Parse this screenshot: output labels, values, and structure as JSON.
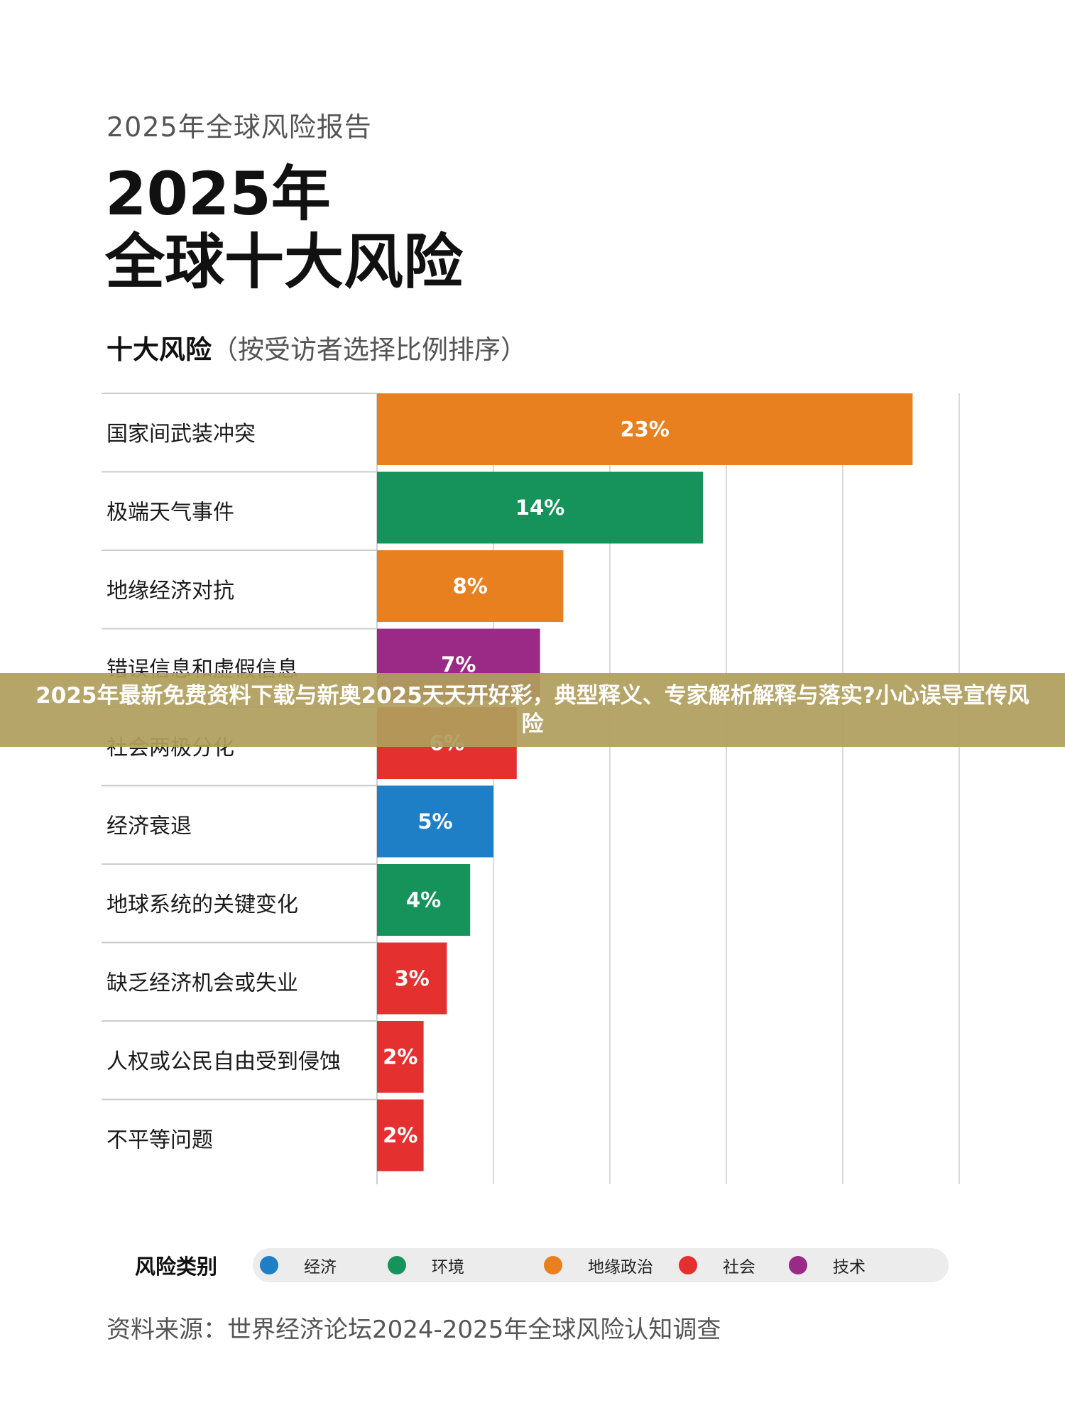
{
  "report_label": "2025年全球风险报告",
  "title_line1": "2025年",
  "title_line2": "全球十大风险",
  "subtitle_strong": "十大风险",
  "subtitle_rest": "（按受访者选择比例排序）",
  "chart_data": {
    "type": "bar",
    "orientation": "horizontal",
    "categories": [
      "国家间武装冲突",
      "极端天气事件",
      "地缘经济对抗",
      "错误信息和虚假信息",
      "社会两极分化",
      "经济衰退",
      "地球系统的关键变化",
      "缺乏经济机会或失业",
      "人权或公民自由受到侵蚀",
      "不平等问题"
    ],
    "values": [
      23,
      14,
      8,
      7,
      6,
      5,
      4,
      3,
      2,
      2
    ],
    "value_labels": [
      "23%",
      "14%",
      "8%",
      "7%",
      "6%",
      "5%",
      "4%",
      "3%",
      "2%",
      "2%"
    ],
    "risk_types": [
      "地缘政治",
      "环境",
      "地缘政治",
      "技术",
      "社会",
      "经济",
      "环境",
      "社会",
      "社会",
      "社会"
    ],
    "grid": true,
    "unit": "%"
  },
  "legend": {
    "title": "风险类别",
    "items": [
      {
        "label": "经济",
        "color": "#1f7fc6"
      },
      {
        "label": "环境",
        "color": "#16935a"
      },
      {
        "label": "地缘政治",
        "color": "#e8801f"
      },
      {
        "label": "社会",
        "color": "#e53030"
      },
      {
        "label": "技术",
        "color": "#9a2a85"
      }
    ]
  },
  "source": "资料来源：世界经济论坛2024-2025年全球风险认知调查",
  "banner_text": "2025年最新免费资料下载与新奥2025天天开好彩，典型释义、专家解析解释与落实?小心误导宣传风险"
}
